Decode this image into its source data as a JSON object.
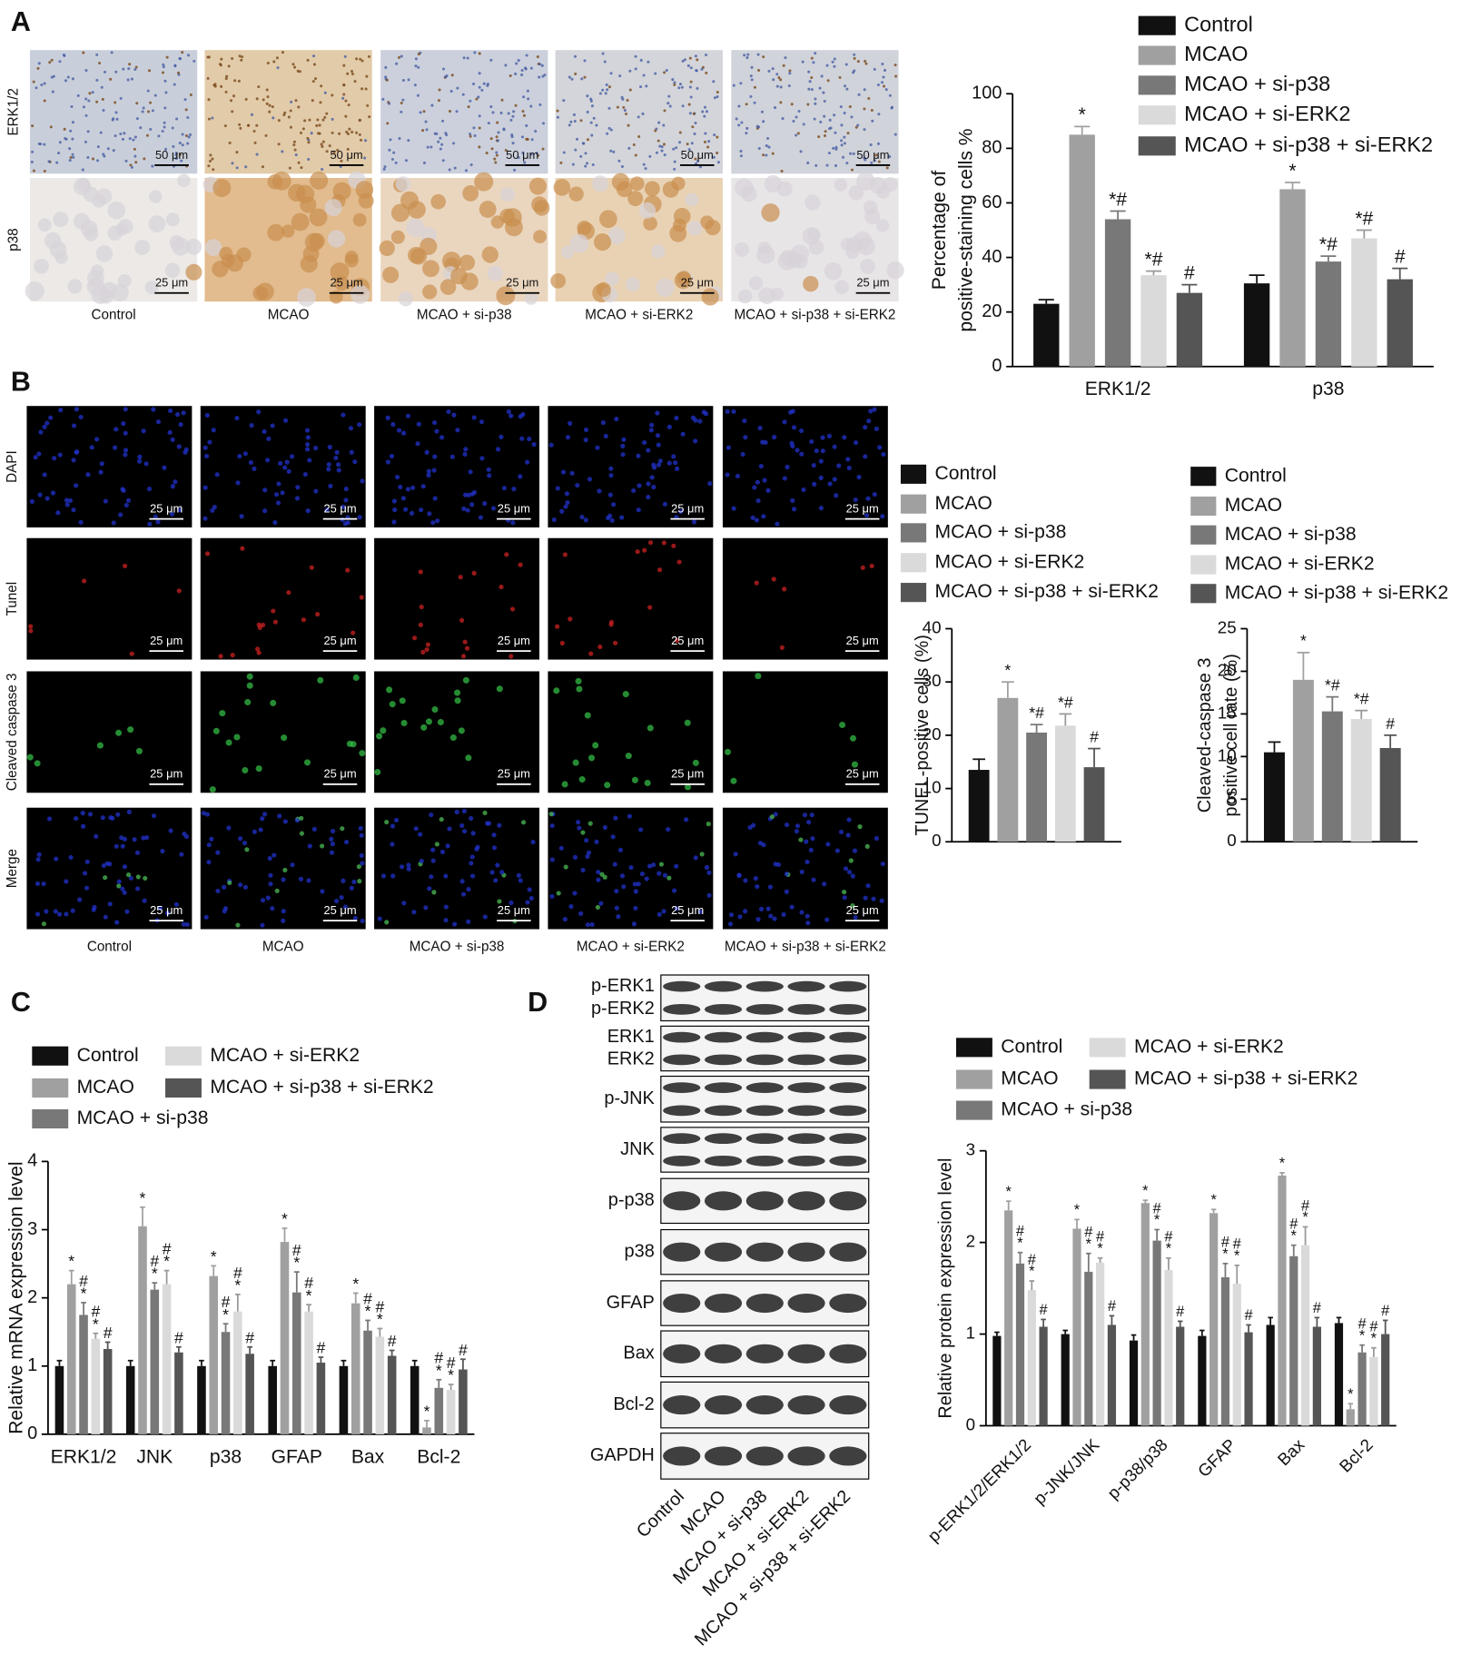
{
  "panel_labels": [
    "A",
    "B",
    "C",
    "D"
  ],
  "figure_a": {
    "rows": [
      "ERK1/2",
      "p38"
    ],
    "columns": [
      "Control",
      "MCAO",
      "MCAO + si-p38",
      "MCAO + si-ERK2",
      "MCAO + si-p38 + si-ERK2"
    ],
    "scale_bars": [
      "50 μm",
      "25 μm"
    ]
  },
  "figure_b": {
    "rows": [
      "DAPI",
      "Tunel",
      "Cleaved caspase 3",
      "Merge"
    ],
    "columns": [
      "Control",
      "MCAO",
      "MCAO + si-p38",
      "MCAO + si-ERK2",
      "MCAO + si-p38 + si-ERK2"
    ],
    "scale_bar": "25 μm"
  },
  "blot": {
    "rows": [
      [
        "p-ERK1",
        "p-ERK2"
      ],
      [
        "ERK1",
        "ERK2"
      ],
      [
        "p-JNK"
      ],
      [
        "JNK"
      ],
      [
        "p-p38"
      ],
      [
        "p38"
      ],
      [
        "GFAP"
      ],
      [
        "Bax"
      ],
      [
        "Bcl-2"
      ],
      [
        "GAPDH"
      ]
    ],
    "lanes": [
      "Control",
      "MCAO",
      "MCAO + si-p38",
      "MCAO + si-ERK2",
      "MCAO + si-p38 + si-ERK2"
    ]
  },
  "chart_data": [
    {
      "type": "bar",
      "ylabel": [
        "Percentage of",
        "positive-staining cells %"
      ],
      "categories": [
        "ERK1/2",
        "p38"
      ],
      "ylim": [
        0,
        100
      ],
      "yticks": [
        0,
        20,
        40,
        60,
        80,
        100
      ],
      "series": [
        {
          "name": "Control",
          "color": "#111111",
          "values": [
            23,
            30.5
          ],
          "errors": [
            1.5,
            3
          ],
          "annotations": [
            null,
            null
          ]
        },
        {
          "name": "MCAO",
          "color": "#a0a0a0",
          "values": [
            85,
            65
          ],
          "errors": [
            3,
            2.5
          ],
          "annotations": [
            "*",
            "*"
          ]
        },
        {
          "name": "MCAO + si-p38",
          "color": "#787878",
          "values": [
            54,
            38.5
          ],
          "errors": [
            3,
            2
          ],
          "annotations": [
            "*#",
            "*#"
          ]
        },
        {
          "name": "MCAO + si-ERK2",
          "color": "#dadada",
          "values": [
            33.5,
            47
          ],
          "errors": [
            1.5,
            3
          ],
          "annotations": [
            "*#",
            "*#"
          ]
        },
        {
          "name": "MCAO + si-p38 + si-ERK2",
          "color": "#555555",
          "values": [
            27,
            32
          ],
          "errors": [
            3,
            4
          ],
          "annotations": [
            "#",
            "#"
          ]
        }
      ]
    },
    {
      "type": "bar",
      "ylabel": [
        "TUNEL-positive cells (%)"
      ],
      "categories": [
        null
      ],
      "ylim": [
        0,
        40
      ],
      "yticks": [
        0,
        10,
        20,
        30,
        40
      ],
      "series": [
        {
          "name": "Control",
          "color": "#111111",
          "values": [
            13.5
          ],
          "errors": [
            2
          ],
          "annotations": [
            null
          ]
        },
        {
          "name": "MCAO",
          "color": "#a0a0a0",
          "values": [
            27
          ],
          "errors": [
            3
          ],
          "annotations": [
            "*"
          ]
        },
        {
          "name": "MCAO + si-p38",
          "color": "#787878",
          "values": [
            20.5
          ],
          "errors": [
            1.5
          ],
          "annotations": [
            "*#"
          ]
        },
        {
          "name": "MCAO + si-ERK2",
          "color": "#dadada",
          "values": [
            21.8
          ],
          "errors": [
            2.2
          ],
          "annotations": [
            "*#"
          ]
        },
        {
          "name": "MCAO + si-p38 + si-ERK2",
          "color": "#555555",
          "values": [
            14
          ],
          "errors": [
            3.5
          ],
          "annotations": [
            "#"
          ]
        }
      ]
    },
    {
      "type": "bar",
      "ylabel": [
        "Cleaved-caspase 3",
        "positive cell rate (%)"
      ],
      "categories": [
        null
      ],
      "ylim": [
        0,
        25
      ],
      "yticks": [
        0,
        5,
        10,
        15,
        20,
        25
      ],
      "series": [
        {
          "name": "Control",
          "color": "#111111",
          "values": [
            10.5
          ],
          "errors": [
            1.2
          ],
          "annotations": [
            null
          ]
        },
        {
          "name": "MCAO",
          "color": "#a0a0a0",
          "values": [
            19
          ],
          "errors": [
            3.2
          ],
          "annotations": [
            "*"
          ]
        },
        {
          "name": "MCAO + si-p38",
          "color": "#787878",
          "values": [
            15.3
          ],
          "errors": [
            1.7
          ],
          "annotations": [
            "*#"
          ]
        },
        {
          "name": "MCAO + si-ERK2",
          "color": "#dadada",
          "values": [
            14.4
          ],
          "errors": [
            1
          ],
          "annotations": [
            "*#"
          ]
        },
        {
          "name": "MCAO + si-p38 + si-ERK2",
          "color": "#555555",
          "values": [
            11
          ],
          "errors": [
            1.5
          ],
          "annotations": [
            "#"
          ]
        }
      ]
    },
    {
      "type": "bar",
      "ylabel": [
        "Relative mRNA expression level"
      ],
      "categories": [
        "ERK1/2",
        "JNK",
        "p38",
        "GFAP",
        "Bax",
        "Bcl-2"
      ],
      "ylim": [
        0,
        4
      ],
      "yticks": [
        0,
        1,
        2,
        3,
        4
      ],
      "series": [
        {
          "name": "Control",
          "color": "#111111",
          "values": [
            1,
            1,
            1,
            1,
            1,
            1
          ],
          "errors": [
            0.08,
            0.08,
            0.08,
            0.08,
            0.08,
            0.08
          ],
          "annotations": [
            null,
            null,
            null,
            null,
            null,
            null
          ]
        },
        {
          "name": "MCAO",
          "color": "#a0a0a0",
          "values": [
            2.2,
            3.05,
            2.32,
            2.82,
            1.92,
            0.1
          ],
          "errors": [
            0.2,
            0.28,
            0.15,
            0.2,
            0.15,
            0.1
          ],
          "annotations": [
            "*",
            "*",
            "*",
            "*",
            "*",
            "*"
          ]
        },
        {
          "name": "MCAO + si-p38",
          "color": "#787878",
          "values": [
            1.75,
            2.12,
            1.5,
            2.08,
            1.52,
            0.68
          ],
          "errors": [
            0.18,
            0.1,
            0.12,
            0.3,
            0.15,
            0.12
          ],
          "annotations": [
            "#*",
            "#*",
            "#*",
            "#*",
            "#*",
            "#*"
          ]
        },
        {
          "name": "MCAO + si-ERK2",
          "color": "#dadada",
          "values": [
            1.4,
            2.2,
            1.8,
            1.8,
            1.43,
            0.65
          ],
          "errors": [
            0.08,
            0.2,
            0.25,
            0.1,
            0.12,
            0.08
          ],
          "annotations": [
            "#*",
            "#*",
            "#*",
            "#*",
            "#*",
            "#*"
          ]
        },
        {
          "name": "MCAO + si-p38 + si-ERK2",
          "color": "#555555",
          "values": [
            1.25,
            1.2,
            1.18,
            1.05,
            1.15,
            0.95
          ],
          "errors": [
            0.1,
            0.08,
            0.1,
            0.08,
            0.08,
            0.15
          ],
          "annotations": [
            "#",
            "#",
            "#",
            "#",
            "#",
            "#"
          ]
        }
      ]
    },
    {
      "type": "bar",
      "ylabel": [
        "Relative protein expression level"
      ],
      "categories": [
        "p-ERK1/2/ERK1/2",
        "p-JNK/JNK",
        "p-p38/p38",
        "GFAP",
        "Bax",
        "Bcl-2"
      ],
      "ylim": [
        0,
        3
      ],
      "yticks": [
        0,
        1,
        2,
        3
      ],
      "series": [
        {
          "name": "Control",
          "color": "#111111",
          "values": [
            0.98,
            1.0,
            0.93,
            0.98,
            1.1,
            1.12
          ],
          "errors": [
            0.04,
            0.04,
            0.06,
            0.06,
            0.08,
            0.06
          ],
          "annotations": [
            null,
            null,
            null,
            null,
            null,
            null
          ]
        },
        {
          "name": "MCAO",
          "color": "#a0a0a0",
          "values": [
            2.35,
            2.15,
            2.43,
            2.32,
            2.73,
            0.18
          ],
          "errors": [
            0.1,
            0.1,
            0.03,
            0.04,
            0.03,
            0.06
          ],
          "annotations": [
            "*",
            "*",
            "*",
            "*",
            "*",
            "*"
          ]
        },
        {
          "name": "MCAO + si-p38",
          "color": "#787878",
          "values": [
            1.77,
            1.68,
            2.02,
            1.62,
            1.85,
            0.8
          ],
          "errors": [
            0.12,
            0.2,
            0.12,
            0.15,
            0.12,
            0.08
          ],
          "annotations": [
            "#*",
            "#*",
            "#*",
            "#*",
            "#*",
            "#*"
          ]
        },
        {
          "name": "MCAO + si-ERK2",
          "color": "#dadada",
          "values": [
            1.48,
            1.78,
            1.7,
            1.55,
            1.97,
            0.75
          ],
          "errors": [
            0.1,
            0.05,
            0.13,
            0.2,
            0.2,
            0.1
          ],
          "annotations": [
            "#*",
            "#*",
            "#*",
            "#*",
            "#*",
            "#*"
          ]
        },
        {
          "name": "MCAO + si-p38 + si-ERK2",
          "color": "#555555",
          "values": [
            1.08,
            1.1,
            1.08,
            1.02,
            1.08,
            1.0
          ],
          "errors": [
            0.08,
            0.1,
            0.06,
            0.08,
            0.1,
            0.15
          ],
          "annotations": [
            "#",
            "#",
            "#",
            "#",
            "#",
            "#"
          ]
        }
      ]
    }
  ]
}
